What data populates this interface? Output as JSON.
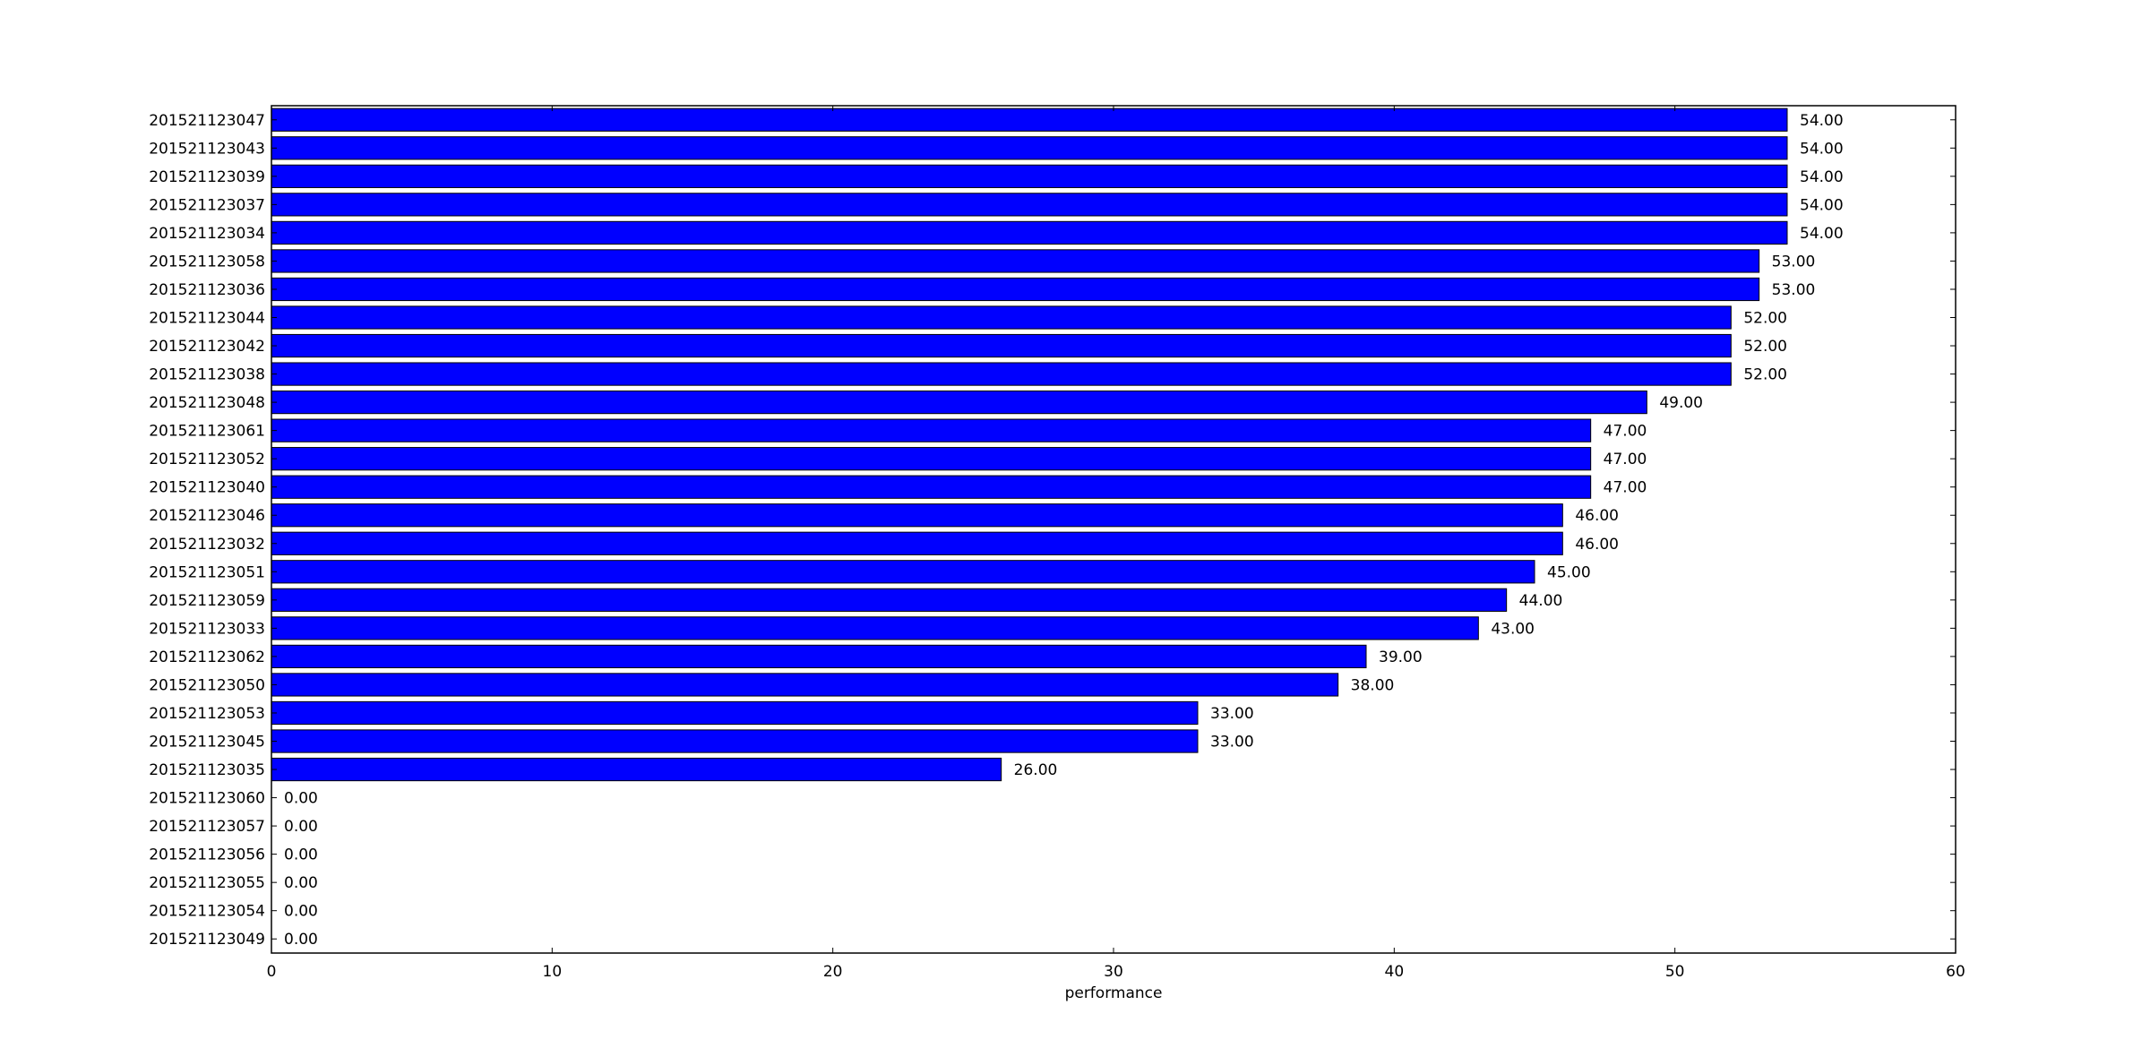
{
  "chart_data": {
    "type": "bar",
    "orientation": "horizontal",
    "xlabel": "performance",
    "ylabel": "",
    "xlim": [
      0,
      60
    ],
    "xticks": [
      "0",
      "10",
      "20",
      "30",
      "40",
      "50",
      "60"
    ],
    "grid": false,
    "bar_color": "#0000ff",
    "categories": [
      "201521123047",
      "201521123043",
      "201521123039",
      "201521123037",
      "201521123034",
      "201521123058",
      "201521123036",
      "201521123044",
      "201521123042",
      "201521123038",
      "201521123048",
      "201521123061",
      "201521123052",
      "201521123040",
      "201521123046",
      "201521123032",
      "201521123051",
      "201521123059",
      "201521123033",
      "201521123062",
      "201521123050",
      "201521123053",
      "201521123045",
      "201521123035",
      "201521123060",
      "201521123057",
      "201521123056",
      "201521123055",
      "201521123054",
      "201521123049"
    ],
    "values": [
      54,
      54,
      54,
      54,
      54,
      53,
      53,
      52,
      52,
      52,
      49,
      47,
      47,
      47,
      46,
      46,
      45,
      44,
      43,
      39,
      38,
      33,
      33,
      26,
      0,
      0,
      0,
      0,
      0,
      0
    ],
    "value_labels": [
      "54.00",
      "54.00",
      "54.00",
      "54.00",
      "54.00",
      "53.00",
      "53.00",
      "52.00",
      "52.00",
      "52.00",
      "49.00",
      "47.00",
      "47.00",
      "47.00",
      "46.00",
      "46.00",
      "45.00",
      "44.00",
      "43.00",
      "39.00",
      "38.00",
      "33.00",
      "33.00",
      "26.00",
      "0.00",
      "0.00",
      "0.00",
      "0.00",
      "0.00",
      "0.00"
    ]
  }
}
